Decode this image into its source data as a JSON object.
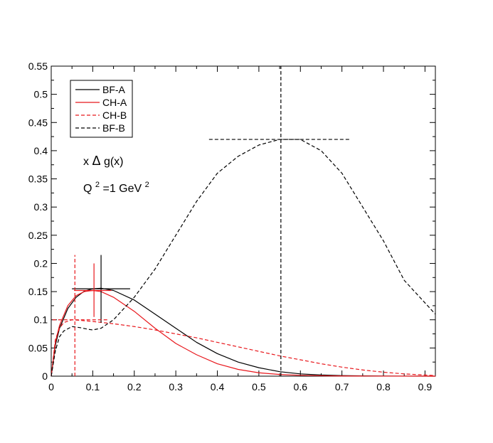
{
  "chart_data": {
    "type": "line",
    "title": "",
    "xlabel": "",
    "ylabel": "",
    "xlim": [
      0,
      0.925
    ],
    "ylim": [
      0,
      0.55
    ],
    "x_ticks": [
      "0",
      "0.1",
      "0.2",
      "0.3",
      "0.4",
      "0.5",
      "0.6",
      "0.7",
      "0.8",
      "0.9"
    ],
    "y_ticks": [
      "0",
      "0.05",
      "0.1",
      "0.15",
      "0.2",
      "0.25",
      "0.3",
      "0.35",
      "0.4",
      "0.45",
      "0.5",
      "0.55"
    ],
    "grid": false,
    "legend_placement": "top-left",
    "annotation": {
      "func_prefix": "x",
      "func_delta": "Δ",
      "func_suffix": "g(x)",
      "q2_q": "Q",
      "q2_exp": "2",
      "q2_mid": "=1 GeV",
      "q2_unit_exp": "2"
    },
    "series": [
      {
        "name": "BF-A",
        "color": "#000000",
        "dash": "solid",
        "x": [
          0,
          0.01,
          0.02,
          0.04,
          0.06,
          0.08,
          0.1,
          0.12,
          0.15,
          0.2,
          0.25,
          0.3,
          0.35,
          0.4,
          0.45,
          0.5,
          0.55,
          0.6,
          0.65,
          0.7,
          0.75,
          0.8,
          0.85,
          0.925
        ],
        "y": [
          0,
          0.055,
          0.085,
          0.12,
          0.14,
          0.151,
          0.155,
          0.156,
          0.152,
          0.135,
          0.11,
          0.085,
          0.06,
          0.04,
          0.025,
          0.015,
          0.008,
          0.004,
          0.002,
          0.001,
          0.0005,
          0.0002,
          0.0001,
          0
        ],
        "marker": {
          "x": 0.12,
          "y": 0.155,
          "xerr": [
            0.05,
            0.19
          ],
          "yerr": [
            0.095,
            0.215
          ]
        }
      },
      {
        "name": "CH-A",
        "color": "#e8171c",
        "dash": "solid",
        "x": [
          0,
          0.01,
          0.02,
          0.04,
          0.06,
          0.08,
          0.1,
          0.12,
          0.15,
          0.2,
          0.25,
          0.3,
          0.35,
          0.4,
          0.45,
          0.5,
          0.55,
          0.6,
          0.65,
          0.7,
          0.8,
          0.925
        ],
        "y": [
          0,
          0.06,
          0.09,
          0.125,
          0.143,
          0.15,
          0.152,
          0.15,
          0.14,
          0.115,
          0.085,
          0.058,
          0.038,
          0.022,
          0.012,
          0.006,
          0.003,
          0.0015,
          0.0007,
          0.0003,
          0.0001,
          0
        ],
        "marker": {
          "x": 0.103,
          "y": 0.152,
          "xerr": [
            0.055,
            0.145
          ],
          "yerr": [
            0.105,
            0.2
          ]
        }
      },
      {
        "name": "CH-B",
        "color": "#e8171c",
        "dash": "dashed",
        "x": [
          0,
          0.01,
          0.02,
          0.03,
          0.05,
          0.07,
          0.1,
          0.15,
          0.2,
          0.25,
          0.3,
          0.35,
          0.4,
          0.45,
          0.5,
          0.55,
          0.6,
          0.65,
          0.7,
          0.75,
          0.8,
          0.85,
          0.9,
          0.925
        ],
        "y": [
          0,
          0.065,
          0.085,
          0.095,
          0.1,
          0.099,
          0.097,
          0.093,
          0.088,
          0.082,
          0.075,
          0.068,
          0.06,
          0.052,
          0.044,
          0.036,
          0.029,
          0.022,
          0.016,
          0.011,
          0.007,
          0.004,
          0.002,
          0.001
        ],
        "marker": {
          "x": 0.057,
          "y": 0.1,
          "xerr": [
            0.003,
            0.14
          ],
          "yerr": [
            0,
            0.215
          ]
        }
      },
      {
        "name": "BF-B",
        "color": "#000000",
        "dash": "dashed",
        "x": [
          0,
          0.01,
          0.02,
          0.03,
          0.05,
          0.07,
          0.09,
          0.1,
          0.12,
          0.15,
          0.2,
          0.25,
          0.3,
          0.35,
          0.4,
          0.45,
          0.5,
          0.55,
          0.6,
          0.65,
          0.7,
          0.75,
          0.8,
          0.85,
          0.9,
          0.925
        ],
        "y": [
          0,
          0.045,
          0.07,
          0.08,
          0.088,
          0.086,
          0.083,
          0.082,
          0.085,
          0.1,
          0.14,
          0.19,
          0.25,
          0.31,
          0.36,
          0.39,
          0.41,
          0.42,
          0.42,
          0.4,
          0.36,
          0.3,
          0.24,
          0.17,
          0.13,
          0.11
        ],
        "marker": {
          "x": 0.553,
          "y": 0.42,
          "xerr": [
            0.38,
            0.72
          ],
          "yerr": [
            0,
            0.56
          ]
        }
      }
    ]
  }
}
